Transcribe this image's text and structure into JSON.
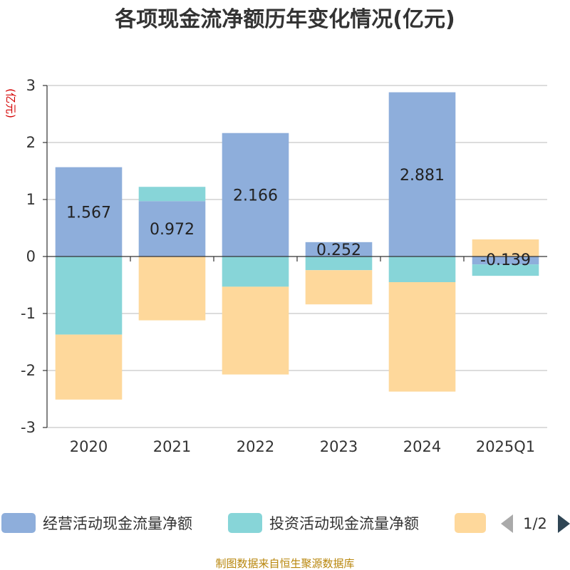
{
  "chart_data": {
    "type": "bar",
    "stacked": true,
    "title": "各项现金流净额历年变化情况(亿元)",
    "ylabel": "(亿元)",
    "categories": [
      "2020",
      "2021",
      "2022",
      "2023",
      "2024",
      "2025Q1"
    ],
    "ylim": [
      -3,
      3
    ],
    "yticks": [
      -3,
      -2,
      -1,
      0,
      1,
      2,
      3
    ],
    "grid": true,
    "legend_position": "bottom",
    "series": [
      {
        "name": "经营活动现金流量净额",
        "color": "#8eaedb",
        "values": [
          1.567,
          0.972,
          2.166,
          0.252,
          2.881,
          -0.139
        ],
        "data_labels": [
          "1.567",
          "0.972",
          "2.166",
          "0.252",
          "2.881",
          "-0.139"
        ]
      },
      {
        "name": "投资活动现金流量净额",
        "color": "#87d5d8",
        "values": [
          -1.37,
          0.25,
          -0.53,
          -0.24,
          -0.45,
          -0.2
        ]
      },
      {
        "name": "",
        "color": "#fed89b",
        "values": [
          -1.14,
          -1.12,
          -1.54,
          -0.6,
          -1.92,
          0.3
        ]
      }
    ]
  },
  "legend": {
    "pager": "1/2"
  },
  "source": "制图数据来自恒生聚源数据库"
}
